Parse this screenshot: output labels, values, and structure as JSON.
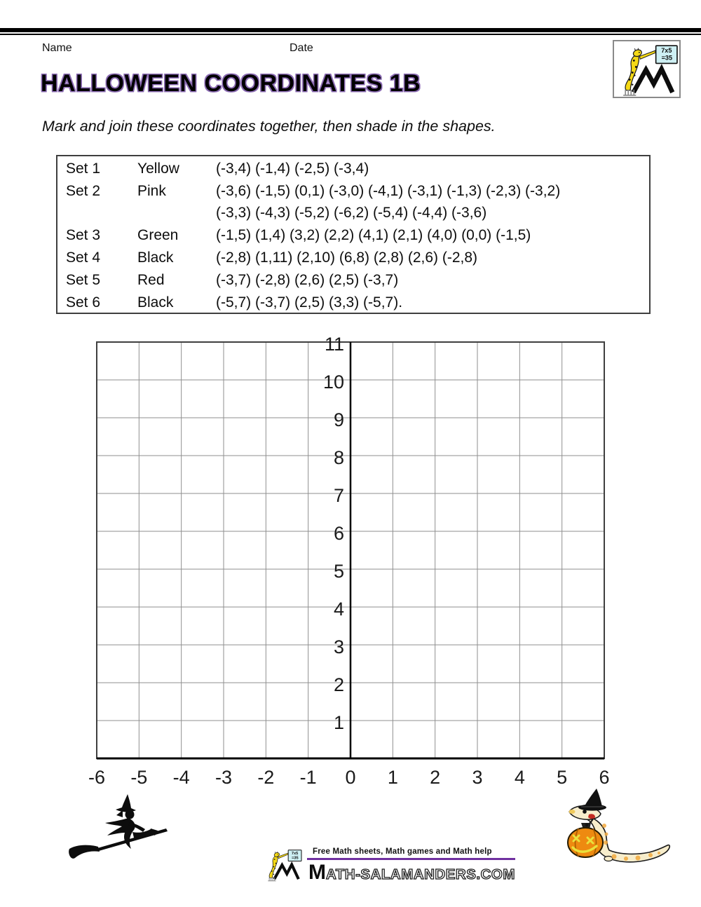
{
  "page": {
    "name_label": "Name",
    "date_label": "Date",
    "title": "HALLOWEEN COORDINATES 1B",
    "instruction": "Mark and join these coordinates together, then shade in the shapes."
  },
  "logo": {
    "board_line1": "7x5",
    "board_line2": "=35"
  },
  "sets": {
    "rows": [
      {
        "set": "Set 1",
        "color": "Yellow",
        "coords": "(-3,4) (-1,4) (-2,5) (-3,4)"
      },
      {
        "set": "Set 2",
        "color": "Pink",
        "coords": "(-3,6) (-1,5) (0,1) (-3,0) (-4,1) (-3,1) (-1,3) (-2,3) (-3,2)"
      },
      {
        "set": "",
        "color": "",
        "coords": "(-3,3) (-4,3) (-5,2) (-6,2) (-5,4) (-4,4) (-3,6)"
      },
      {
        "set": "Set 3",
        "color": "Green",
        "coords": "(-1,5) (1,4) (3,2) (2,2) (4,1) (2,1) (4,0) (0,0) (-1,5)"
      },
      {
        "set": "Set 4",
        "color": "Black",
        "coords": "(-2,8) (1,11) (2,10) (6,8) (2,8) (2,6) (-2,8)"
      },
      {
        "set": "Set 5",
        "color": "Red",
        "coords": "(-3,7) (-2,8) (2,6) (2,5) (-3,7)"
      },
      {
        "set": "Set 6",
        "color": "Black",
        "coords": "(-5,7) (-3,7) (2,5) (3,3) (-5,7)."
      }
    ]
  },
  "grid": {
    "x_min": -6,
    "x_max": 6,
    "y_min": 0,
    "y_max": 11,
    "x_tick_labels": [
      "-6",
      "-5",
      "-4",
      "-3",
      "-2",
      "-1",
      "0",
      "1",
      "2",
      "3",
      "4",
      "5",
      "6"
    ],
    "y_tick_labels": [
      "1",
      "2",
      "3",
      "4",
      "5",
      "6",
      "7",
      "8",
      "9",
      "10",
      "11"
    ]
  },
  "footer": {
    "tagline": "Free Math sheets, Math games and Math help",
    "domain_m": "M",
    "domain_rest": "ATH-SALAMANDERS.COM"
  },
  "colors": {
    "accent_purple": "#7030A0",
    "title_outline": "#8b6bb3",
    "grid_line_gray": "#8f8f8f",
    "grid_border": "#3f3f3f",
    "pumpkin_orange": "#EE8A10",
    "salamander_yellow": "#F5D915",
    "board_cyan": "#CEF0F4"
  }
}
